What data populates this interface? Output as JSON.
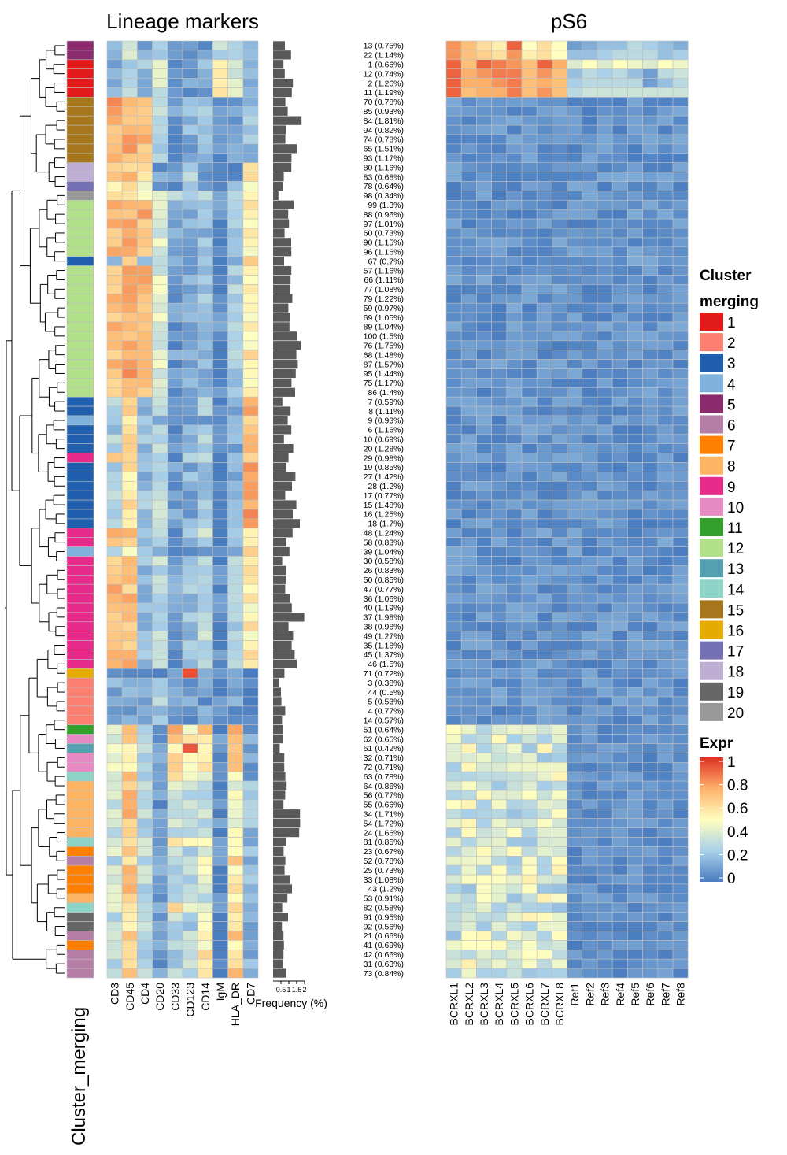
{
  "chart_data": {
    "type": "heatmap",
    "titles": {
      "lineage": "Lineage markers",
      "ps6": "pS6"
    },
    "lineage_markers": [
      "CD3",
      "CD45",
      "CD4",
      "CD20",
      "CD33",
      "CD123",
      "CD14",
      "IgM",
      "HLA_DR",
      "CD7"
    ],
    "ps6_columns": [
      "BCRXL1",
      "BCRXL2",
      "BCRXL3",
      "BCRXL4",
      "BCRXL5",
      "BCRXL6",
      "BCRXL7",
      "BCRXL8",
      "Ref1",
      "Ref2",
      "Ref3",
      "Ref4",
      "Ref5",
      "Ref6",
      "Ref7",
      "Ref8"
    ],
    "row_labels": [
      "13 (0.75%)",
      "22 (1.14%)",
      "1 (0.66%)",
      "12 (0.74%)",
      "2 (1.26%)",
      "11 (1.19%)",
      "70 (0.78%)",
      "85 (0.93%)",
      "84 (1.81%)",
      "94 (0.82%)",
      "74 (0.78%)",
      "65 (1.51%)",
      "93 (1.17%)",
      "80 (1.16%)",
      "83 (0.68%)",
      "78 (0.64%)",
      "98 (0.34%)",
      "99 (1.3%)",
      "88 (0.96%)",
      "97 (1.01%)",
      "60 (0.73%)",
      "90 (1.15%)",
      "96 (1.16%)",
      "67 (0.7%)",
      "57 (1.16%)",
      "66 (1.11%)",
      "77 (1.08%)",
      "79 (1.22%)",
      "59 (0.97%)",
      "69 (1.05%)",
      "89 (1.04%)",
      "100 (1.5%)",
      "76 (1.75%)",
      "68 (1.48%)",
      "87 (1.57%)",
      "95 (1.44%)",
      "75 (1.17%)",
      "86 (1.4%)",
      "7 (0.59%)",
      "8 (1.11%)",
      "9 (0.93%)",
      "6 (1.16%)",
      "10 (0.69%)",
      "20 (1.28%)",
      "29 (0.98%)",
      "19 (0.85%)",
      "27 (1.42%)",
      "28 (1.2%)",
      "17 (0.77%)",
      "15 (1.48%)",
      "16 (1.25%)",
      "18 (1.7%)",
      "48 (1.24%)",
      "58 (0.83%)",
      "39 (1.04%)",
      "30 (0.58%)",
      "26 (0.83%)",
      "50 (0.85%)",
      "47 (0.77%)",
      "36 (1.06%)",
      "40 (1.19%)",
      "37 (1.98%)",
      "38 (0.98%)",
      "49 (1.27%)",
      "35 (1.18%)",
      "45 (1.37%)",
      "46 (1.5%)",
      "71 (0.72%)",
      "3 (0.38%)",
      "44 (0.5%)",
      "5 (0.53%)",
      "4 (0.77%)",
      "14 (0.57%)",
      "51 (0.64%)",
      "62 (0.65%)",
      "61 (0.42%)",
      "32 (0.71%)",
      "72 (0.71%)",
      "63 (0.78%)",
      "64 (0.86%)",
      "56 (0.77%)",
      "55 (0.66%)",
      "34 (1.71%)",
      "54 (1.72%)",
      "24 (1.66%)",
      "81 (0.85%)",
      "23 (0.67%)",
      "52 (0.78%)",
      "25 (0.73%)",
      "33 (1.08%)",
      "43 (1.2%)",
      "53 (0.91%)",
      "82 (0.58%)",
      "91 (0.95%)",
      "92 (0.56%)",
      "21 (0.66%)",
      "41 (0.69%)",
      "42 (0.66%)",
      "31 (0.63%)",
      "73 (0.84%)"
    ],
    "frequency_percent": [
      0.75,
      1.14,
      0.66,
      0.74,
      1.26,
      1.19,
      0.78,
      0.93,
      1.81,
      0.82,
      0.78,
      1.51,
      1.17,
      1.16,
      0.68,
      0.64,
      0.34,
      1.3,
      0.96,
      1.01,
      0.73,
      1.15,
      1.16,
      0.7,
      1.16,
      1.11,
      1.08,
      1.22,
      0.97,
      1.05,
      1.04,
      1.5,
      1.75,
      1.48,
      1.57,
      1.44,
      1.17,
      1.4,
      0.59,
      1.11,
      0.93,
      1.16,
      0.69,
      1.28,
      0.98,
      0.85,
      1.42,
      1.2,
      0.77,
      1.48,
      1.25,
      1.7,
      1.24,
      0.83,
      1.04,
      0.58,
      0.83,
      0.85,
      0.77,
      1.06,
      1.19,
      1.98,
      0.98,
      1.27,
      1.18,
      1.37,
      1.5,
      0.72,
      0.38,
      0.5,
      0.53,
      0.77,
      0.57,
      0.64,
      0.65,
      0.42,
      0.71,
      0.71,
      0.78,
      0.86,
      0.77,
      0.66,
      1.71,
      1.72,
      1.66,
      0.85,
      0.67,
      0.78,
      0.73,
      1.08,
      1.2,
      0.91,
      0.58,
      0.95,
      0.56,
      0.66,
      0.69,
      0.66,
      0.63,
      0.84
    ],
    "frequency_axis": {
      "label": "Frequency (%)",
      "ticks": [
        0.5,
        1,
        1.5,
        2
      ],
      "tick_labels": [
        "0.5",
        "1",
        "1.5",
        "2"
      ],
      "range": [
        0,
        2
      ]
    },
    "cluster_merging": [
      5,
      5,
      1,
      1,
      1,
      1,
      15,
      15,
      15,
      15,
      15,
      15,
      15,
      18,
      18,
      17,
      20,
      12,
      12,
      12,
      12,
      12,
      12,
      3,
      12,
      12,
      12,
      12,
      12,
      12,
      12,
      12,
      12,
      12,
      12,
      12,
      12,
      12,
      3,
      3,
      4,
      3,
      3,
      3,
      9,
      3,
      3,
      3,
      3,
      3,
      3,
      3,
      9,
      9,
      4,
      9,
      9,
      9,
      9,
      9,
      9,
      9,
      9,
      9,
      9,
      9,
      9,
      16,
      2,
      2,
      2,
      2,
      2,
      11,
      10,
      13,
      10,
      10,
      14,
      8,
      8,
      8,
      8,
      8,
      8,
      14,
      7,
      6,
      7,
      7,
      7,
      8,
      14,
      19,
      19,
      6,
      7,
      6,
      6,
      6
    ],
    "cluster_legend": {
      "title": "Cluster merging",
      "title_lines": [
        "Cluster",
        "merging"
      ],
      "labels": [
        "1",
        "2",
        "3",
        "4",
        "5",
        "6",
        "7",
        "8",
        "9",
        "10",
        "11",
        "12",
        "13",
        "14",
        "15",
        "16",
        "17",
        "18",
        "19",
        "20"
      ],
      "colors": [
        "#E31A1C",
        "#FB8072",
        "#1F5FAD",
        "#7EB2DD",
        "#8C2A6E",
        "#B47EA6",
        "#FF7F00",
        "#FDB462",
        "#E7298A",
        "#E78AC3",
        "#33A02C",
        "#B2DF8A",
        "#55A1B1",
        "#8DD3C7",
        "#A6761D",
        "#E6AB02",
        "#7570B3",
        "#BEAED4",
        "#666666",
        "#999999"
      ]
    },
    "bottom_label": "Cluster_merging",
    "expr_legend": {
      "title": "Expr",
      "ticks": [
        1,
        0.8,
        0.6,
        0.4,
        0.2,
        0
      ],
      "tick_labels": [
        "1",
        "0.8",
        "0.6",
        "0.4",
        "0.2",
        "0"
      ],
      "range": [
        0,
        1
      ]
    },
    "colors": {
      "low": "#4A7CC0",
      "mid_low": "#A9D0E8",
      "mid": "#FFFFBF",
      "mid_high": "#FDB06A",
      "high": "#E03024",
      "na": "#BDBDBD",
      "cell_border": "#BFBFBF",
      "bar": "#595959"
    }
  }
}
